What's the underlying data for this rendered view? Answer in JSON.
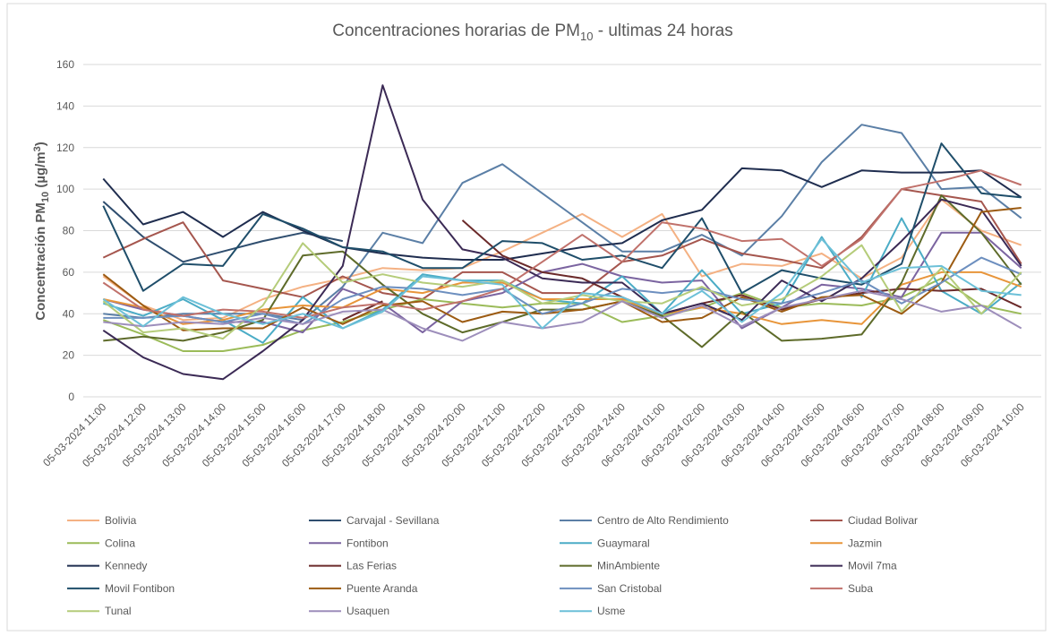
{
  "chart_data": {
    "type": "line",
    "title_parts": [
      "Concentraciones horarias de PM",
      "10",
      " - ultimas 24 horas"
    ],
    "y_label_parts": [
      "Concentración PM",
      "10",
      " (µg/m",
      "3",
      ")"
    ],
    "categories": [
      "05-03-2024 11:00",
      "05-03-2024 12:00",
      "05-03-2024 13:00",
      "05-03-2024 14:00",
      "05-03-2024 15:00",
      "05-03-2024 16:00",
      "05-03-2024 17:00",
      "05-03-2024 18:00",
      "05-03-2024 19:00",
      "05-03-2024 20:00",
      "05-03-2024 21:00",
      "05-03-2024 22:00",
      "05-03-2024 23:00",
      "05-03-2024 24:00",
      "06-03-2024 01:00",
      "06-03-2024 02:00",
      "06-03-2024 03:00",
      "06-03-2024 04:00",
      "06-03-2024 05:00",
      "06-03-2024 06:00",
      "06-03-2024 07:00",
      "06-03-2024 08:00",
      "06-03-2024 09:00",
      "06-03-2024 10:00"
    ],
    "ylim": [
      0,
      160
    ],
    "yticks": [
      0,
      20,
      40,
      60,
      80,
      100,
      120,
      140,
      160
    ],
    "grid": true,
    "series": [
      {
        "name": "Bolivia",
        "color": "#f4b183",
        "values": [
          58,
          44,
          37,
          38,
          47,
          53,
          57,
          62,
          61,
          62,
          70,
          79,
          88,
          77,
          88,
          58,
          64,
          63,
          69,
          57,
          67,
          95,
          80,
          73
        ]
      },
      {
        "name": "Carvajal - Sevillana",
        "color": "#2f4e6f",
        "values": [
          94,
          77,
          65,
          70,
          75,
          79,
          75,
          null,
          null,
          null,
          null,
          null,
          null,
          null,
          null,
          null,
          null,
          null,
          null,
          null,
          null,
          null,
          null,
          null
        ]
      },
      {
        "name": "Centro de Alto Rendimiento",
        "color": "#5b7fa6",
        "values": [
          40,
          38,
          40,
          40,
          40,
          37,
          53,
          79,
          74,
          103,
          112,
          98,
          84,
          70,
          70,
          78,
          68,
          87,
          113,
          131,
          127,
          100,
          101,
          86
        ]
      },
      {
        "name": "Ciudad Bolivar",
        "color": "#a5564e",
        "values": [
          67,
          76,
          84,
          56,
          52,
          48,
          58,
          50,
          47,
          60,
          60,
          50,
          50,
          65,
          68,
          76,
          69,
          66,
          62,
          77,
          100,
          97,
          94,
          64
        ]
      },
      {
        "name": "Colina",
        "color": "#9bbb59",
        "values": [
          37,
          30,
          22,
          22,
          25,
          32,
          36,
          42,
          47,
          45,
          43,
          45,
          45,
          36,
          39,
          43,
          50,
          43,
          45,
          44,
          48,
          57,
          44,
          40
        ]
      },
      {
        "name": "Fontibon",
        "color": "#7b64a0",
        "values": [
          47,
          42,
          39,
          36,
          36,
          31,
          52,
          45,
          31,
          46,
          50,
          60,
          64,
          58,
          55,
          56,
          33,
          43,
          54,
          52,
          48,
          79,
          79,
          62
        ]
      },
      {
        "name": "Guaymaral",
        "color": "#4bacc6",
        "values": [
          45,
          39,
          47,
          37,
          26,
          48,
          33,
          42,
          59,
          56,
          56,
          47,
          45,
          58,
          40,
          61,
          40,
          45,
          77,
          48,
          86,
          51,
          40,
          55
        ]
      },
      {
        "name": "Jazmin",
        "color": "#e8953a",
        "values": [
          47,
          43,
          35,
          37,
          42,
          44,
          43,
          52,
          50,
          55,
          55,
          47,
          47,
          47,
          40,
          43,
          40,
          35,
          37,
          35,
          54,
          60,
          60,
          53
        ]
      },
      {
        "name": "Kennedy",
        "color": "#1f2d4f",
        "values": [
          105,
          83,
          89,
          77,
          89,
          80,
          72,
          69,
          67,
          66,
          66,
          69,
          72,
          74,
          85,
          90,
          110,
          109,
          101,
          109,
          108,
          108,
          109,
          96
        ]
      },
      {
        "name": "Las Ferias",
        "color": "#6b2a2a",
        "values": [
          null,
          null,
          null,
          null,
          null,
          null,
          37,
          46,
          null,
          85,
          68,
          60,
          57,
          48,
          40,
          45,
          49,
          42,
          47,
          50,
          52,
          51,
          52,
          43
        ]
      },
      {
        "name": "MinAmbiente",
        "color": "#5e6b2a",
        "values": [
          27,
          29,
          27,
          31,
          37,
          68,
          70,
          54,
          40,
          31,
          36,
          42,
          42,
          46,
          39,
          24,
          41,
          27,
          28,
          30,
          55,
          97,
          79,
          54
        ]
      },
      {
        "name": "Movil 7ma",
        "color": "#3b2a55",
        "values": [
          32,
          19,
          11,
          8.5,
          22,
          37,
          63,
          150,
          95,
          71,
          67,
          57,
          55,
          55,
          40,
          45,
          37,
          56,
          46,
          57,
          75,
          95,
          90,
          63
        ]
      },
      {
        "name": "Movil Fontibon",
        "color": "#1f4e6a",
        "values": [
          92,
          51,
          64,
          63,
          88,
          81,
          72,
          70,
          62,
          62,
          75,
          74,
          66,
          68,
          62,
          86,
          50,
          61,
          57,
          54,
          64,
          122,
          98,
          96
        ]
      },
      {
        "name": "Puente Aranda",
        "color": "#9c5b12",
        "values": [
          59,
          44,
          32,
          33,
          33,
          43,
          35,
          44,
          46,
          36,
          41,
          40,
          42,
          46,
          36,
          38,
          48,
          41,
          48,
          49,
          40,
          55,
          89,
          91
        ]
      },
      {
        "name": "San Cristobal",
        "color": "#6d8fbf",
        "values": [
          38,
          38,
          39,
          36,
          40,
          35,
          47,
          53,
          52,
          49,
          52,
          40,
          45,
          52,
          50,
          52,
          47,
          45,
          50,
          56,
          45,
          55,
          67,
          59
        ]
      },
      {
        "name": "Suba",
        "color": "#c0716b",
        "values": [
          55,
          42,
          39,
          42,
          41,
          38,
          43,
          45,
          42,
          46,
          52,
          65,
          78,
          65,
          84,
          81,
          75,
          76,
          63,
          76,
          100,
          104,
          109,
          102
        ]
      },
      {
        "name": "Tunal",
        "color": "#b5cc7a",
        "values": [
          46,
          31,
          33,
          28,
          44,
          74,
          55,
          59,
          55,
          53,
          56,
          45,
          49,
          46,
          45,
          53,
          44,
          47,
          58,
          73,
          41,
          62,
          40,
          60
        ]
      },
      {
        "name": "Usaquen",
        "color": "#9d8ebb",
        "values": [
          36,
          34,
          36,
          35,
          38,
          35,
          41,
          42,
          33,
          27,
          36,
          33,
          36,
          46,
          38,
          44,
          34,
          43,
          47,
          51,
          47,
          41,
          44,
          33
        ]
      },
      {
        "name": "Usme",
        "color": "#6cc0d8",
        "values": [
          47,
          34,
          48,
          40,
          35,
          40,
          33,
          41,
          58,
          56,
          54,
          33,
          50,
          48,
          40,
          51,
          36,
          50,
          76,
          55,
          62,
          63,
          51,
          49
        ]
      }
    ]
  }
}
